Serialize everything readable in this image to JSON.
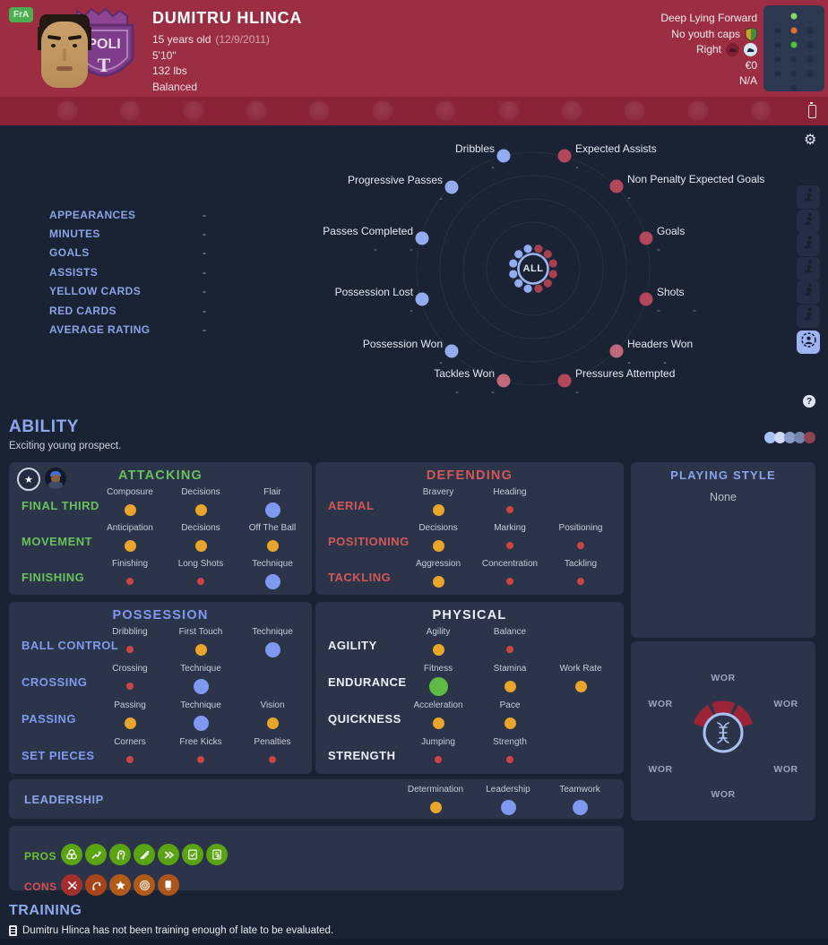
{
  "header": {
    "nation_badge": "FrA",
    "name": "DUMITRU HLINCA",
    "age": "15 years old",
    "birthdate": "(12/9/2011)",
    "height": "5'10\"",
    "weight": "132 lbs",
    "build": "Balanced",
    "role": "Deep Lying Forward",
    "caps": "No youth caps",
    "foot": "Right",
    "value": "€0",
    "rating": "N/A",
    "crest_text": "POLI",
    "crest_letter": "T",
    "icons": {
      "caps_icon": "youth-caps-shield",
      "foot_icons": [
        "left-foot-boot",
        "right-foot-boot"
      ],
      "battery_icon": "battery"
    }
  },
  "position_map": {
    "grid": [
      [
        null,
        "#85d96b",
        null
      ],
      [
        "#232d43",
        "#e5702c",
        "#232d43"
      ],
      [
        "#232d43",
        "#4fc33d",
        "#232d43"
      ],
      [
        "#232d43",
        "#232d43",
        "#232d43"
      ],
      [
        "#232d43",
        "#232d43",
        "#232d43"
      ],
      [
        null,
        "#232d43",
        null
      ]
    ]
  },
  "icon_strip": {
    "crest_count": 12
  },
  "summary": {
    "rows": [
      {
        "label": "APPEARANCES",
        "value": "-"
      },
      {
        "label": "MINUTES",
        "value": "-"
      },
      {
        "label": "GOALS",
        "value": "-"
      },
      {
        "label": "ASSISTS",
        "value": "-"
      },
      {
        "label": "YELLOW CARDS",
        "value": "-"
      },
      {
        "label": "RED CARDS",
        "value": "-"
      },
      {
        "label": "AVERAGE RATING",
        "value": "-"
      }
    ]
  },
  "radar": {
    "center_label": "ALL",
    "colors": {
      "blue": "#93abef",
      "red": "#b3485c",
      "pink": "#c0697a"
    },
    "stats": [
      {
        "label": "Dribbles",
        "color": "blue",
        "values": [
          "-"
        ]
      },
      {
        "label": "Expected Assists",
        "color": "red",
        "values": [
          "-"
        ]
      },
      {
        "label": "Progressive Passes",
        "color": "blue",
        "values": [
          "-"
        ]
      },
      {
        "label": "Non Penalty Expected Goals",
        "color": "red",
        "values": [
          "-"
        ]
      },
      {
        "label": "Passes Completed",
        "color": "blue",
        "values": [
          "-",
          "-"
        ]
      },
      {
        "label": "Goals",
        "color": "red",
        "values": [
          "-"
        ]
      },
      {
        "label": "Possession Lost",
        "color": "blue",
        "values": [
          "-"
        ]
      },
      {
        "label": "Shots",
        "color": "red",
        "values": [
          "-",
          "-"
        ]
      },
      {
        "label": "Possession Won",
        "color": "blue",
        "values": [
          "-"
        ]
      },
      {
        "label": "Headers Won",
        "color": "pink",
        "values": [
          "-",
          "-"
        ]
      },
      {
        "label": "Tackles Won",
        "color": "pink",
        "values": [
          "-",
          "-"
        ]
      },
      {
        "label": "Pressures Attempted",
        "color": "red",
        "values": [
          "-"
        ]
      }
    ]
  },
  "toolbar": {
    "gear_icon": "settings-gear",
    "buttons": [
      "goalkeeper-dive",
      "player-standing",
      "player-kicking",
      "player-dribbling",
      "player-running",
      "player-skill"
    ],
    "active_button": "scout-data-circle",
    "help_icon": "help-question"
  },
  "ability": {
    "title": "ABILITY",
    "subtitle": "Exciting young prospect.",
    "rating_dots": [
      "#a9c2f4",
      "#cfdaf8",
      "#8a9cc8",
      "#7585ae",
      "#8e4350"
    ]
  },
  "panels": {
    "attacking": {
      "title": "ATTACKING",
      "accent": "#67c15c",
      "groups": [
        {
          "label": "FINAL THIRD",
          "attrs": [
            {
              "name": "Composure",
              "level": "yellow"
            },
            {
              "name": "Decisions",
              "level": "yellow"
            },
            {
              "name": "Flair",
              "level": "blue"
            }
          ]
        },
        {
          "label": "MOVEMENT",
          "attrs": [
            {
              "name": "Anticipation",
              "level": "yellow"
            },
            {
              "name": "Decisions",
              "level": "yellow"
            },
            {
              "name": "Off The Ball",
              "level": "yellow"
            }
          ]
        },
        {
          "label": "FINISHING",
          "attrs": [
            {
              "name": "Finishing",
              "level": "red"
            },
            {
              "name": "Long Shots",
              "level": "red"
            },
            {
              "name": "Technique",
              "level": "blue"
            }
          ]
        }
      ]
    },
    "defending": {
      "title": "DEFENDING",
      "accent": "#d25757",
      "groups": [
        {
          "label": "AERIAL",
          "attrs": [
            {
              "name": "Bravery",
              "level": "yellow"
            },
            {
              "name": "Heading",
              "level": "red"
            }
          ]
        },
        {
          "label": "POSITIONING",
          "attrs": [
            {
              "name": "Decisions",
              "level": "yellow"
            },
            {
              "name": "Marking",
              "level": "red"
            },
            {
              "name": "Positioning",
              "level": "red"
            }
          ]
        },
        {
          "label": "TACKLING",
          "attrs": [
            {
              "name": "Aggression",
              "level": "yellow"
            },
            {
              "name": "Concentration",
              "level": "red"
            },
            {
              "name": "Tackling",
              "level": "red"
            }
          ]
        }
      ]
    },
    "possession": {
      "title": "POSSESSION",
      "accent": "#7f9af0",
      "groups": [
        {
          "label": "BALL CONTROL",
          "attrs": [
            {
              "name": "Dribbling",
              "level": "red"
            },
            {
              "name": "First Touch",
              "level": "yellow"
            },
            {
              "name": "Technique",
              "level": "blue"
            }
          ]
        },
        {
          "label": "CROSSING",
          "attrs": [
            {
              "name": "Crossing",
              "level": "red"
            },
            {
              "name": "Technique",
              "level": "blue"
            }
          ]
        },
        {
          "label": "PASSING",
          "attrs": [
            {
              "name": "Passing",
              "level": "yellow"
            },
            {
              "name": "Technique",
              "level": "blue"
            },
            {
              "name": "Vision",
              "level": "yellow"
            }
          ]
        },
        {
          "label": "SET PIECES",
          "attrs": [
            {
              "name": "Corners",
              "level": "red"
            },
            {
              "name": "Free Kicks",
              "level": "red"
            },
            {
              "name": "Penalties",
              "level": "red"
            }
          ]
        }
      ]
    },
    "physical": {
      "title": "PHYSICAL",
      "accent": "#ecf0f8",
      "groups": [
        {
          "label": "AGILITY",
          "attrs": [
            {
              "name": "Agility",
              "level": "yellow"
            },
            {
              "name": "Balance",
              "level": "red"
            }
          ]
        },
        {
          "label": "ENDURANCE",
          "attrs": [
            {
              "name": "Fitness",
              "level": "green"
            },
            {
              "name": "Stamina",
              "level": "yellow"
            },
            {
              "name": "Work Rate",
              "level": "yellow"
            }
          ]
        },
        {
          "label": "QUICKNESS",
          "attrs": [
            {
              "name": "Acceleration",
              "level": "yellow"
            },
            {
              "name": "Pace",
              "level": "yellow"
            }
          ]
        },
        {
          "label": "STRENGTH",
          "attrs": [
            {
              "name": "Jumping",
              "level": "red"
            },
            {
              "name": "Strength",
              "level": "red"
            }
          ]
        }
      ]
    }
  },
  "playing_style": {
    "title": "PLAYING STYLE",
    "value": "None"
  },
  "wor": {
    "labels": [
      "WOR",
      "WOR",
      "WOR",
      "WOR",
      "WOR",
      "WOR"
    ],
    "center_icon": "dna-helix",
    "fan_color": "#9b2537"
  },
  "leadership": {
    "title": "LEADERSHIP",
    "attrs": [
      {
        "name": "Determination",
        "level": "yellow"
      },
      {
        "name": "Leadership",
        "level": "blue"
      },
      {
        "name": "Teamwork",
        "level": "blue"
      }
    ]
  },
  "pros_cons": {
    "pros_label": "PROS",
    "cons_label": "CONS",
    "pros_color": "#5aa414",
    "cons_colors": [
      "#a32e2e",
      "#a84417",
      "#b25a1a",
      "#b25a1a",
      "#ab541b"
    ],
    "pros_icons": [
      "interlocked-rings",
      "growth-arrow",
      "mind-head",
      "pin",
      "double-chevron",
      "report-check",
      "report-flag"
    ],
    "cons_icons": [
      "broken-scissors",
      "hooked-arrow",
      "star",
      "target",
      "card-hand"
    ]
  },
  "training": {
    "title": "TRAINING",
    "message": "Dumitru Hlinca has not been training enough of late to be evaluated."
  }
}
